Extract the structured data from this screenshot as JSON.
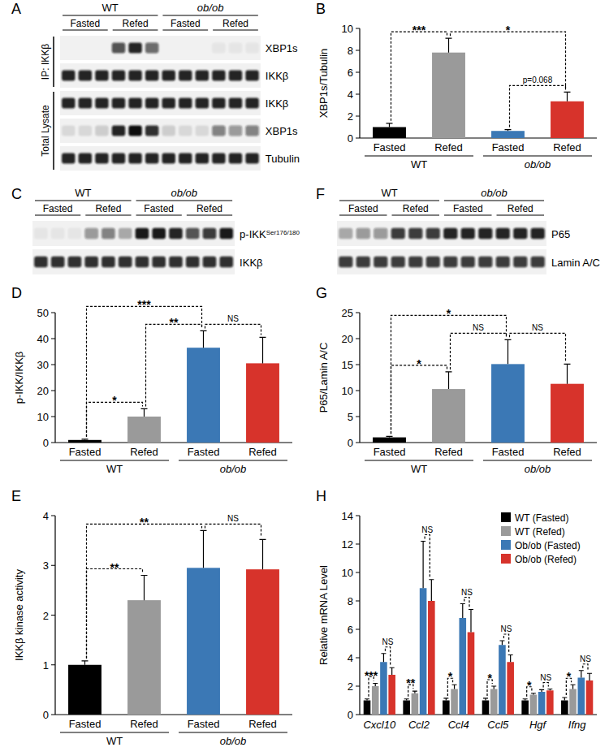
{
  "chart_data": [
    {
      "panel_label": "B",
      "type": "bar",
      "ylabel": "XBP1s/Tubulin",
      "categories": [
        "Fasted",
        "Refed",
        "Fasted",
        "Refed"
      ],
      "groups": [
        "WT",
        "ob/ob"
      ],
      "values": [
        1.0,
        7.8,
        0.65,
        3.35
      ],
      "errors": [
        0.35,
        1.3,
        0.12,
        0.85
      ],
      "colors": [
        "#000000",
        "#9a9a9a",
        "#3b78b5",
        "#d7332b"
      ],
      "ylim": [
        0,
        10
      ],
      "yticks": [
        0,
        2,
        4,
        6,
        8,
        10
      ],
      "annotations": [
        {
          "from": 0,
          "to": 1,
          "text": "***"
        },
        {
          "from": 2,
          "to": 3,
          "text": "p=0.068"
        },
        {
          "from": 1,
          "to": 3,
          "text": "*"
        }
      ]
    },
    {
      "panel_label": "D",
      "type": "bar",
      "ylabel": "p-IKK/IKKβ",
      "categories": [
        "Fasted",
        "Refed",
        "Fasted",
        "Refed"
      ],
      "groups": [
        "WT",
        "ob/ob"
      ],
      "values": [
        1.0,
        10.0,
        36.5,
        30.5
      ],
      "errors": [
        0.3,
        3.0,
        6.5,
        10.0
      ],
      "colors": [
        "#000000",
        "#9a9a9a",
        "#3b78b5",
        "#d7332b"
      ],
      "ylim": [
        0,
        50
      ],
      "yticks": [
        0,
        10,
        20,
        30,
        40,
        50
      ],
      "annotations": [
        {
          "from": 0,
          "to": 1,
          "text": "*"
        },
        {
          "from": 1,
          "to": 2,
          "text": "**"
        },
        {
          "from": 0,
          "to": 2,
          "text": "***"
        },
        {
          "from": 2,
          "to": 3,
          "text": "NS"
        }
      ]
    },
    {
      "panel_label": "E",
      "type": "bar",
      "ylabel": "IKKβ kinase activity",
      "categories": [
        "Fasted",
        "Refed",
        "Fasted",
        "Refed"
      ],
      "groups": [
        "WT",
        "ob/ob"
      ],
      "values": [
        1.0,
        2.3,
        2.95,
        2.92
      ],
      "errors": [
        0.08,
        0.5,
        0.75,
        0.6
      ],
      "colors": [
        "#000000",
        "#9a9a9a",
        "#3b78b5",
        "#d7332b"
      ],
      "ylim": [
        0,
        4
      ],
      "yticks": [
        0,
        1,
        2,
        3,
        4
      ],
      "annotations": [
        {
          "from": 0,
          "to": 1,
          "text": "**"
        },
        {
          "from": 0,
          "to": 2,
          "text": "**"
        },
        {
          "from": 2,
          "to": 3,
          "text": "NS"
        }
      ]
    },
    {
      "panel_label": "G",
      "type": "bar",
      "ylabel": "P65/Lamin A/C",
      "categories": [
        "Fasted",
        "Refed",
        "Fasted",
        "Refed"
      ],
      "groups": [
        "WT",
        "ob/ob"
      ],
      "values": [
        1.0,
        10.3,
        15.1,
        11.3
      ],
      "errors": [
        0.2,
        3.3,
        4.7,
        3.8
      ],
      "colors": [
        "#000000",
        "#9a9a9a",
        "#3b78b5",
        "#d7332b"
      ],
      "ylim": [
        0,
        25
      ],
      "yticks": [
        0,
        5,
        10,
        15,
        20,
        25
      ],
      "annotations": [
        {
          "from": 0,
          "to": 1,
          "text": "*"
        },
        {
          "from": 1,
          "to": 2,
          "text": "NS"
        },
        {
          "from": 0,
          "to": 2,
          "text": "*"
        },
        {
          "from": 2,
          "to": 3,
          "text": "NS"
        }
      ]
    },
    {
      "panel_label": "H",
      "type": "bar",
      "ylabel": "Relative mRNA Level",
      "legend": "upper right",
      "categories": [
        "Cxcl10",
        "Ccl2",
        "Ccl4",
        "Ccl5",
        "Hgf",
        "Ifng"
      ],
      "series": [
        {
          "name": "WT (Fasted)",
          "color": "#000000",
          "values": [
            1.0,
            1.0,
            1.0,
            1.0,
            1.0,
            1.0
          ],
          "errors": [
            0.1,
            0.1,
            0.15,
            0.15,
            0.1,
            0.2
          ]
        },
        {
          "name": "WT (Refed)",
          "color": "#9a9a9a",
          "values": [
            2.0,
            1.5,
            1.8,
            1.8,
            1.4,
            1.8
          ],
          "errors": [
            0.2,
            0.15,
            0.3,
            0.2,
            0.1,
            0.3
          ]
        },
        {
          "name": "Ob/ob (Fasted)",
          "color": "#3b78b5",
          "values": [
            3.7,
            8.9,
            6.8,
            4.9,
            1.6,
            2.6
          ],
          "errors": [
            0.6,
            3.3,
            1.0,
            0.3,
            0.15,
            0.5
          ]
        },
        {
          "name": "Ob/ob (Refed)",
          "color": "#d7332b",
          "values": [
            2.8,
            8.0,
            5.8,
            3.7,
            1.7,
            2.4
          ],
          "errors": [
            0.5,
            1.5,
            1.6,
            0.5,
            0.1,
            0.5
          ]
        }
      ],
      "ylim": [
        0,
        14
      ],
      "yticks": [
        0,
        2,
        4,
        6,
        8,
        10,
        12,
        14
      ],
      "annotations": [
        {
          "category": 0,
          "from": 0,
          "to": 1,
          "text": "***"
        },
        {
          "category": 0,
          "from": 2,
          "to": 3,
          "text": "NS"
        },
        {
          "category": 1,
          "from": 0,
          "to": 1,
          "text": "**"
        },
        {
          "category": 1,
          "from": 2,
          "to": 3,
          "text": "NS"
        },
        {
          "category": 2,
          "from": 0,
          "to": 1,
          "text": "*"
        },
        {
          "category": 2,
          "from": 2,
          "to": 3,
          "text": "NS"
        },
        {
          "category": 3,
          "from": 0,
          "to": 1,
          "text": "*"
        },
        {
          "category": 3,
          "from": 2,
          "to": 3,
          "text": "NS"
        },
        {
          "category": 4,
          "from": 0,
          "to": 1,
          "text": "*"
        },
        {
          "category": 4,
          "from": 2,
          "to": 3,
          "text": "NS"
        },
        {
          "category": 5,
          "from": 0,
          "to": 1,
          "text": "*"
        },
        {
          "category": 5,
          "from": 2,
          "to": 3,
          "text": "NS"
        }
      ]
    }
  ],
  "blots": [
    {
      "panel_label": "A",
      "groups": [
        "WT",
        "ob/ob"
      ],
      "conditions": [
        "Fasted",
        "Refed",
        "Fasted",
        "Refed"
      ],
      "sections": [
        {
          "label": "IP: IKKβ",
          "rows": [
            {
              "label": "XBP1s",
              "bands": [
                0,
                0,
                0,
                0.7,
                0.9,
                0.6,
                0,
                0,
                0,
                0.05,
                0.05,
                0.05
              ]
            },
            {
              "label": "IKKβ",
              "bands": [
                0.9,
                0.9,
                0.9,
                0.9,
                0.9,
                0.9,
                0.9,
                0.9,
                0.9,
                0.9,
                0.9,
                0.9
              ]
            }
          ]
        },
        {
          "label": "Total Lysate",
          "rows": [
            {
              "label": "IKKβ",
              "bands": [
                0.9,
                0.9,
                0.9,
                0.9,
                0.9,
                0.9,
                0.9,
                0.9,
                0.9,
                0.9,
                0.9,
                0.9
              ]
            },
            {
              "label": "XBP1s",
              "bands": [
                0.1,
                0.1,
                0.15,
                0.9,
                1.0,
                0.85,
                0.15,
                0.1,
                0.1,
                0.5,
                0.4,
                0.5
              ]
            },
            {
              "label": "Tubulin",
              "bands": [
                0.9,
                0.9,
                0.9,
                0.9,
                0.9,
                0.9,
                0.9,
                0.9,
                0.9,
                0.9,
                0.9,
                0.9
              ]
            }
          ]
        }
      ]
    },
    {
      "panel_label": "C",
      "groups": [
        "WT",
        "ob/ob"
      ],
      "conditions": [
        "Fasted",
        "Refed",
        "Fasted",
        "Refed"
      ],
      "sections": [
        {
          "rows": [
            {
              "label": "p-IKK",
              "superscript": "Ser176/180",
              "bands": [
                0.05,
                0.05,
                0.05,
                0.4,
                0.5,
                0.3,
                0.95,
                0.95,
                0.9,
                0.7,
                0.8,
                0.95
              ]
            },
            {
              "label": "IKKβ",
              "bands": [
                0.85,
                0.85,
                0.85,
                0.85,
                0.85,
                0.85,
                0.85,
                0.85,
                0.85,
                0.85,
                0.85,
                0.85
              ]
            }
          ]
        }
      ]
    },
    {
      "panel_label": "F",
      "groups": [
        "WT",
        "ob/ob"
      ],
      "conditions": [
        "Fasted",
        "Refed",
        "Fasted",
        "Refed"
      ],
      "sections": [
        {
          "rows": [
            {
              "label": "P65",
              "bands": [
                0.3,
                0.4,
                0.4,
                0.8,
                0.8,
                0.8,
                0.9,
                0.9,
                0.9,
                0.9,
                0.9,
                0.9
              ]
            },
            {
              "label": "Lamin A/C",
              "bands": [
                0.8,
                0.8,
                0.8,
                0.8,
                0.8,
                0.8,
                0.8,
                0.8,
                0.8,
                0.8,
                0.8,
                0.8
              ]
            }
          ]
        }
      ]
    }
  ]
}
